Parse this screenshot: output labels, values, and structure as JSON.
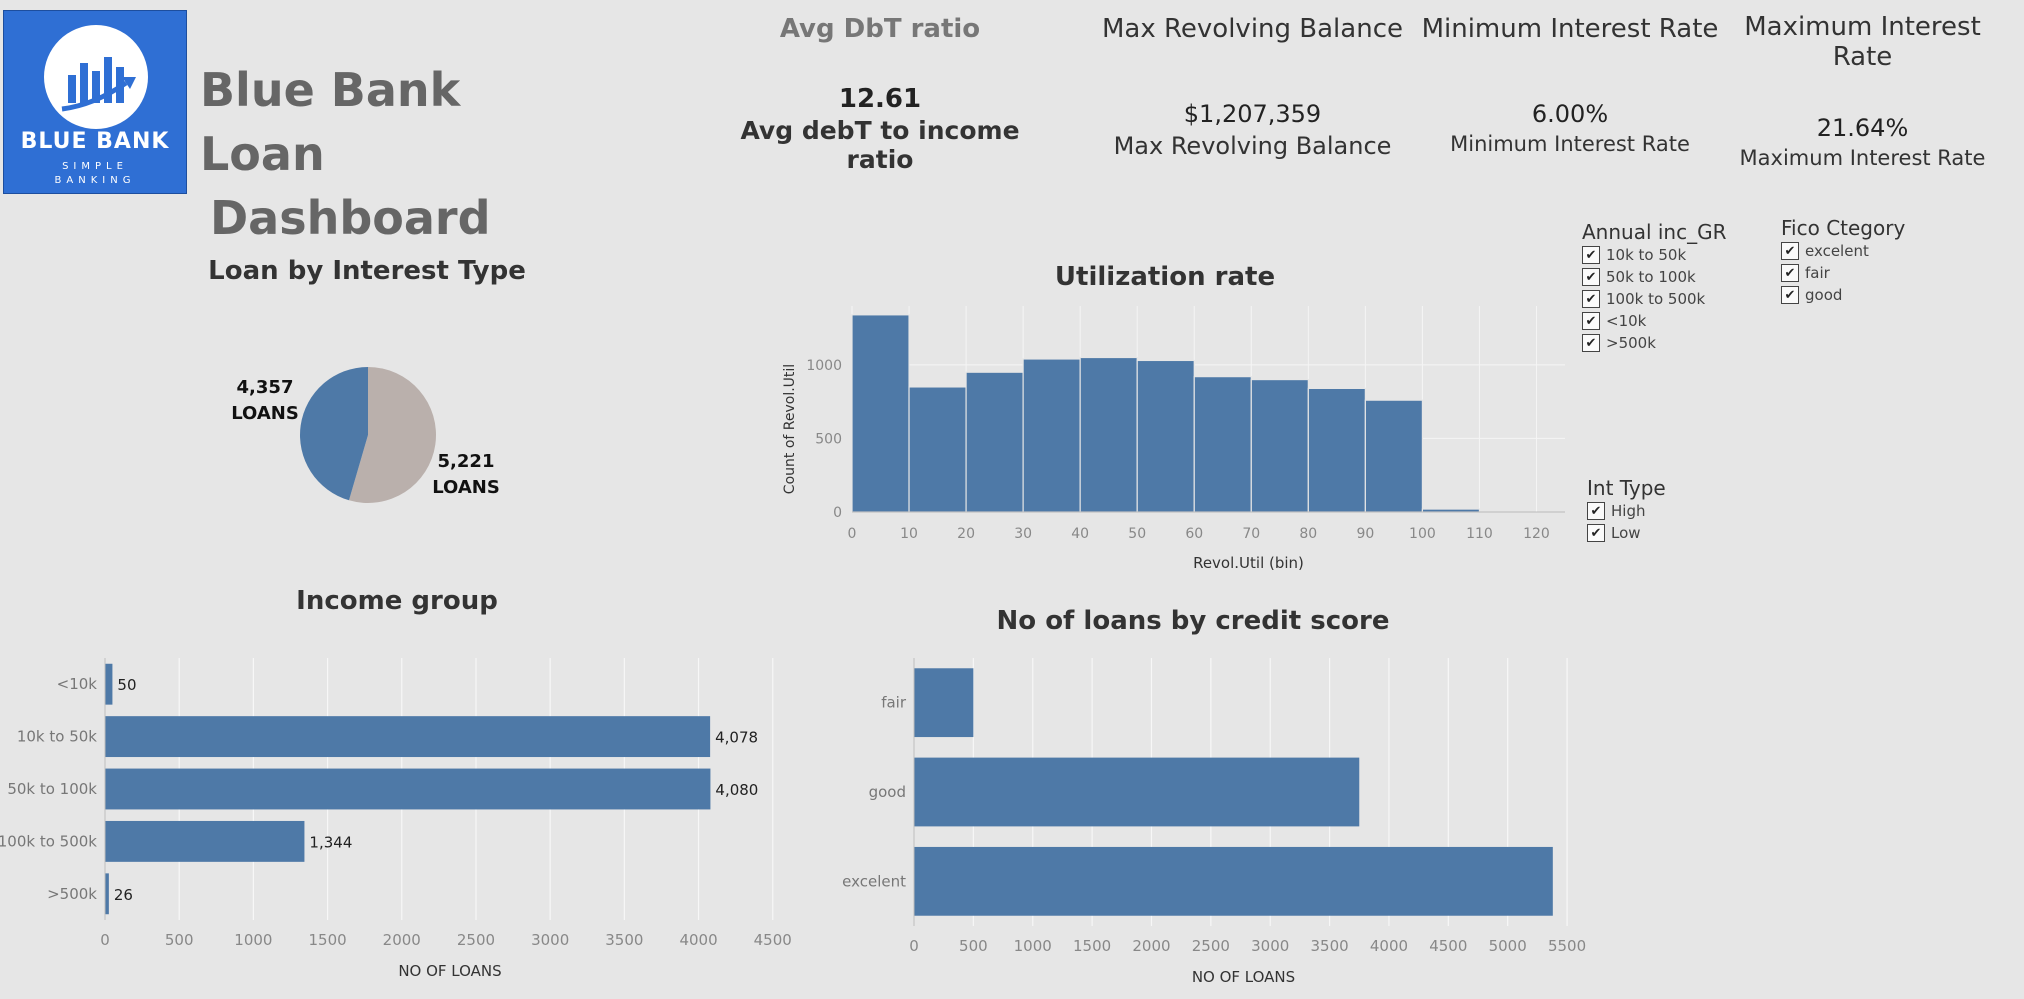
{
  "logo": {
    "name": "BLUE BANK",
    "tagline_1": "SIMPLE",
    "tagline_2": "BANKING"
  },
  "dashboard": {
    "title_line1": "Blue Bank Loan",
    "title_line2": "Dashboard"
  },
  "kpis": [
    {
      "header": "Avg DbT ratio",
      "value": "12.61",
      "subtitle": "Avg debT to income ratio"
    },
    {
      "header": "Max Revolving Balance",
      "value": "$1,207,359",
      "subtitle": "Max Revolving Balance"
    },
    {
      "header": "Minimum Interest Rate",
      "value": "6.00%",
      "subtitle": "Minimum Interest Rate"
    },
    {
      "header_line1": "Maximum Interest",
      "header_line2": "Rate",
      "value": "21.64%",
      "subtitle": "Maximum Interest Rate"
    }
  ],
  "filters": {
    "annual_income": {
      "title": "Annual inc_GR",
      "options": [
        "10k to 50k",
        "50k to 100k",
        "100k to 500k",
        "<10k",
        ">500k"
      ]
    },
    "fico": {
      "title": "Fico Ctegory",
      "options": [
        "excelent",
        "fair",
        "good"
      ]
    },
    "int_type": {
      "title": "Int Type",
      "options": [
        "High",
        "Low"
      ]
    },
    "checkmark": "✔"
  },
  "colors": {
    "bar": "#4e79a7",
    "pie_secondary": "#bab0ac",
    "background": "#e6e6e6",
    "logo_blue": "#2f6fd4"
  },
  "chart_data": [
    {
      "id": "pie",
      "type": "pie",
      "title": "Loan by Interest Type",
      "slices": [
        {
          "label_value": "4,357",
          "label_unit": "LOANS",
          "value": 4357,
          "color": "#4e79a7"
        },
        {
          "label_value": "5,221",
          "label_unit": "LOANS",
          "value": 5221,
          "color": "#bab0ac"
        }
      ]
    },
    {
      "id": "hist",
      "type": "bar",
      "title": "Utilization rate",
      "xlabel": "Revol.Util (bin)",
      "ylabel": "Count of Revol.Util",
      "bins": [
        0,
        10,
        20,
        30,
        40,
        50,
        60,
        70,
        80,
        90,
        100
      ],
      "values": [
        1340,
        850,
        950,
        1040,
        1050,
        1030,
        920,
        900,
        840,
        760,
        20
      ],
      "xticks": [
        0,
        10,
        20,
        30,
        40,
        50,
        60,
        70,
        80,
        90,
        100,
        110,
        120
      ],
      "yticks": [
        0,
        500,
        1000
      ],
      "xlim": [
        0,
        125
      ],
      "ylim": [
        0,
        1400
      ]
    },
    {
      "id": "income",
      "type": "bar",
      "orientation": "horizontal",
      "title": "Income group",
      "xlabel": "NO OF LOANS",
      "categories": [
        "<10k",
        "10k to 50k",
        "50k to 100k",
        "100k to 500k",
        ">500k"
      ],
      "values": [
        50,
        4078,
        4080,
        1344,
        26
      ],
      "value_labels": [
        "50",
        "4,078",
        "4,080",
        "1,344",
        "26"
      ],
      "xticks": [
        0,
        500,
        1000,
        1500,
        2000,
        2500,
        3000,
        3500,
        4000,
        4500
      ],
      "xlim": [
        0,
        4650
      ]
    },
    {
      "id": "credit",
      "type": "bar",
      "orientation": "horizontal",
      "title": "No of loans by credit score",
      "xlabel": "NO OF LOANS",
      "categories": [
        "fair",
        "good",
        "excelent"
      ],
      "values": [
        500,
        3750,
        5380
      ],
      "xticks": [
        0,
        500,
        1000,
        1500,
        2000,
        2500,
        3000,
        3500,
        4000,
        4500,
        5000,
        5500
      ],
      "xlim": [
        0,
        5550
      ]
    }
  ]
}
